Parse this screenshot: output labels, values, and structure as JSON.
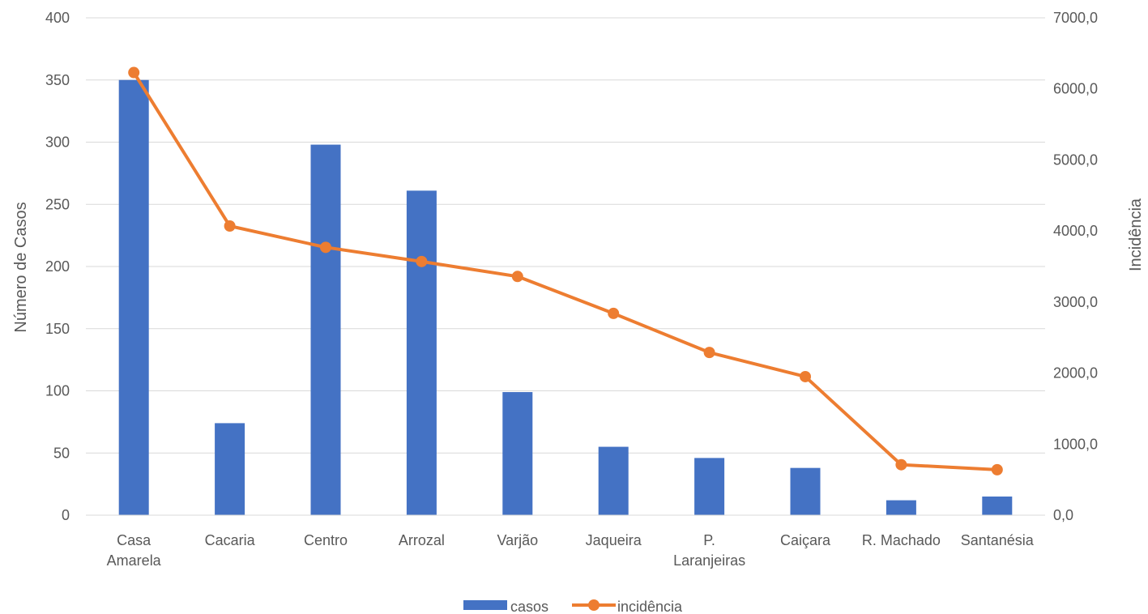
{
  "chart_data": {
    "type": "bar",
    "title": "",
    "categories": [
      "Casa Amarela",
      "Cacaria",
      "Centro",
      "Arrozal",
      "Varjão",
      "Jaqueira",
      "P. Laranjeiras",
      "Caiçara",
      "R. Machado",
      "Santanésia"
    ],
    "category_label_lines": [
      [
        "Casa",
        "Amarela"
      ],
      [
        "Cacaria"
      ],
      [
        "Centro"
      ],
      [
        "Arrozal"
      ],
      [
        "Varjão"
      ],
      [
        "Jaqueira"
      ],
      [
        "P.",
        "Laranjeiras"
      ],
      [
        "Caiçara"
      ],
      [
        "R. Machado"
      ],
      [
        "Santanésia"
      ]
    ],
    "series": [
      {
        "name": "casos",
        "type": "bar",
        "axis": "left",
        "color": "#4472C4",
        "values": [
          350,
          74,
          298,
          261,
          99,
          55,
          46,
          38,
          12,
          15
        ]
      },
      {
        "name": "incidência",
        "type": "line",
        "axis": "right",
        "color": "#ED7D31",
        "marker": "circle",
        "values": [
          6230,
          4070,
          3770,
          3570,
          3360,
          2840,
          2290,
          1950,
          710,
          640
        ]
      }
    ],
    "ylabel": "Número de Casos",
    "y2label": "Incidência",
    "ylim": [
      0,
      400
    ],
    "y2lim": [
      0,
      7000
    ],
    "yticks": [
      "0",
      "50",
      "100",
      "150",
      "200",
      "250",
      "300",
      "350",
      "400"
    ],
    "y2ticks": [
      "0,0",
      "1000,0",
      "2000,0",
      "3000,0",
      "4000,0",
      "5000,0",
      "6000,0",
      "7000,0"
    ],
    "grid": true,
    "legend_position": "bottom",
    "legend": [
      "casos",
      "incidência"
    ]
  }
}
